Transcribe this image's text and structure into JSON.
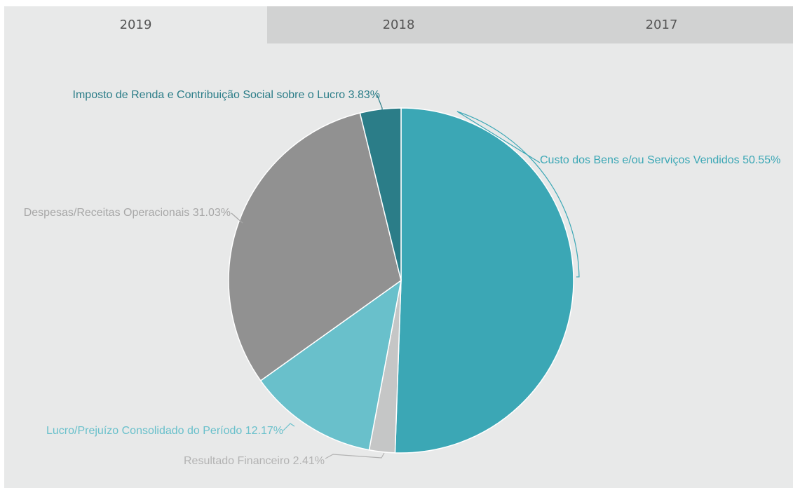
{
  "tabs": [
    {
      "label": "2019",
      "active": true
    },
    {
      "label": "2018",
      "active": false
    },
    {
      "label": "2017",
      "active": false
    }
  ],
  "chart_data": {
    "type": "pie",
    "title": "",
    "slices": [
      {
        "label": "Custo dos Bens e/ou Serviços Vendidos 50.55%",
        "value": 50.55,
        "color": "#3ba7b5"
      },
      {
        "label": "Resultado Financeiro 2.41%",
        "value": 2.41,
        "color": "#c5c6c6"
      },
      {
        "label": "Lucro/Prejuízo Consolidado do Período 12.17%",
        "value": 12.17,
        "color": "#69c0cb"
      },
      {
        "label": "Despesas/Receitas Operacionais 31.03%",
        "value": 31.03,
        "color": "#919191"
      },
      {
        "label": "Imposto de Renda e Contribuição Social sobre o Lucro 3.83%",
        "value": 3.83,
        "color": "#2b7d88"
      }
    ],
    "label_colors": [
      "#3ba7b5",
      "#b3b3b3",
      "#69c0cb",
      "#a7a7a7",
      "#2b7d88"
    ]
  }
}
